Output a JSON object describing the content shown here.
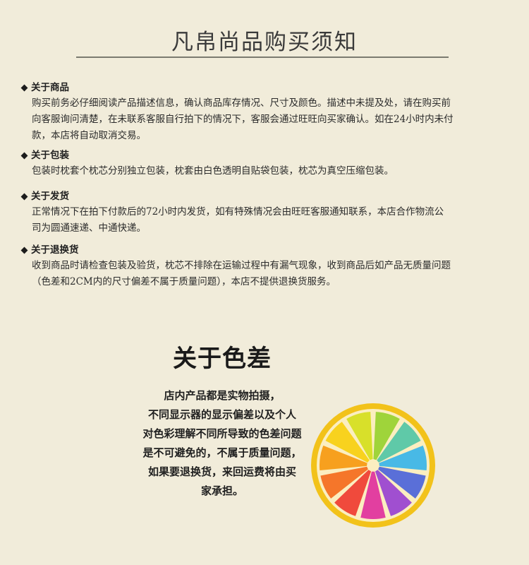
{
  "title": "凡帛尚品购买须知",
  "sections": [
    {
      "heading": "关于商品",
      "lines": [
        "购买前务必仔细阅读产品描述信息，确认商品库存情况、尺寸及颜色。描述中未提及处，请在购买前",
        "向客服询问清楚，在未联系客服自行拍下的情况下，客服会通过旺旺向买家确认。如在24小时内未付",
        "款，本店将自动取消交易。"
      ]
    },
    {
      "heading": "关于包装",
      "lines": [
        "包装时枕套个枕芯分别独立包装，枕套由白色透明自贴袋包装，枕芯为真空压缩包装。"
      ]
    },
    {
      "heading": "关于发货",
      "lines": [
        "正常情况下在拍下付款后的72小时内发货，如有特殊情况会由旺旺客服通知联系，本店合作物流公",
        "司为圆通速递、中通快递。"
      ]
    },
    {
      "heading": "关于退换货",
      "lines": [
        "收到商品时请检查包装及验货，枕芯不排除在运输过程中有漏气现象，收到商品后如产品无质量问题",
        "（色差和2CM内的尺寸偏差不属于质量问题），本店不提供退换货服务。"
      ]
    }
  ],
  "color_notice": {
    "title": "关于色差",
    "lines": [
      "店内产品都是实物拍摄，",
      "不同显示器的显示偏差以及个人",
      "对色彩理解不同所导致的色差问题",
      "是不可避免的，不属于质量问题，",
      "如果要退换货，来回运费将由买",
      "家承担。"
    ]
  },
  "colors": {
    "background": "#f1ecda",
    "lemon_rind": "#f2c21a",
    "segments": [
      "#9fd43a",
      "#5fc9a8",
      "#48b9e6",
      "#5a6fd8",
      "#a04fd0",
      "#e23fa0",
      "#f04a3c",
      "#f5762a",
      "#f7a01e",
      "#f8d21e",
      "#d8e02a"
    ]
  }
}
